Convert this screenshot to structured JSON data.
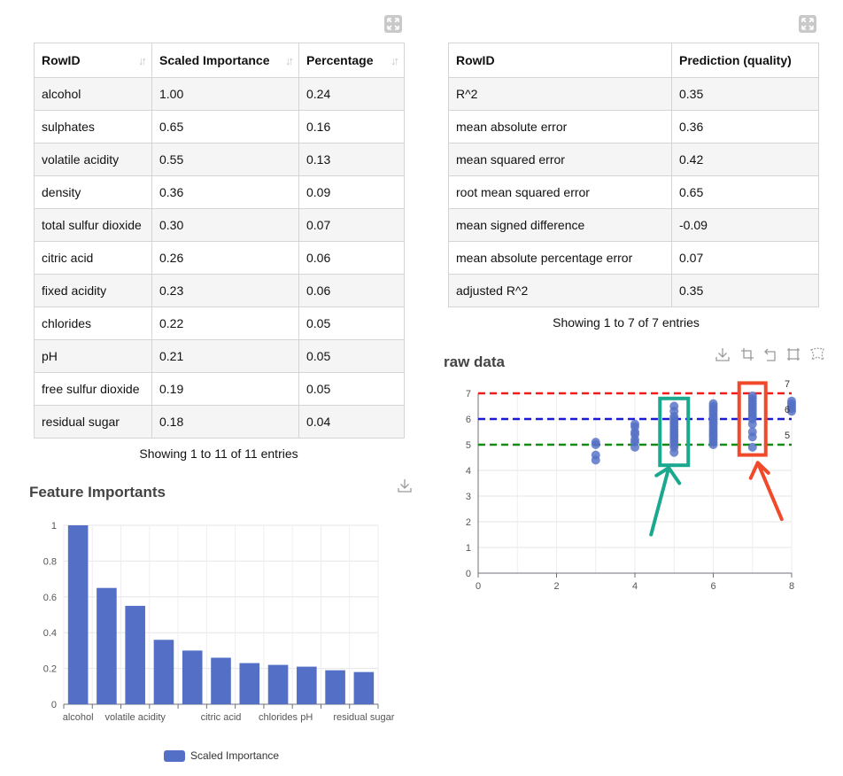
{
  "left_table": {
    "columns": [
      "RowID",
      "Scaled Importance",
      "Percentage"
    ],
    "rows": [
      [
        "alcohol",
        "1.00",
        "0.24"
      ],
      [
        "sulphates",
        "0.65",
        "0.16"
      ],
      [
        "volatile acidity",
        "0.55",
        "0.13"
      ],
      [
        "density",
        "0.36",
        "0.09"
      ],
      [
        "total sulfur dioxide",
        "0.30",
        "0.07"
      ],
      [
        "citric acid",
        "0.26",
        "0.06"
      ],
      [
        "fixed acidity",
        "0.23",
        "0.06"
      ],
      [
        "chlorides",
        "0.22",
        "0.05"
      ],
      [
        "pH",
        "0.21",
        "0.05"
      ],
      [
        "free sulfur dioxide",
        "0.19",
        "0.05"
      ],
      [
        "residual sugar",
        "0.18",
        "0.04"
      ]
    ],
    "info": "Showing 1 to 11 of 11 entries"
  },
  "right_table": {
    "columns": [
      "RowID",
      "Prediction (quality)"
    ],
    "rows": [
      [
        "R^2",
        "0.35"
      ],
      [
        "mean absolute error",
        "0.36"
      ],
      [
        "mean squared error",
        "0.42"
      ],
      [
        "root mean squared error",
        "0.65"
      ],
      [
        "mean signed difference",
        "-0.09"
      ],
      [
        "mean absolute percentage error",
        "0.07"
      ],
      [
        "adjusted R^2",
        "0.35"
      ]
    ],
    "info": "Showing 1 to 7 of 7 entries"
  },
  "icons": {
    "expand": "expand-icon",
    "download": "download-icon",
    "zoom": "data-zoom-icon",
    "zoom_reset": "zoom-reset-icon",
    "rect_select": "rect-select-icon",
    "lasso": "lasso-select-icon"
  },
  "colors": {
    "bar": "#5470c6",
    "scatter": "#5470c6",
    "line_7": "#ee1c1c",
    "line_6": "#1a1ad4",
    "line_5": "#138a13",
    "teal_annotation": "#1aa98f",
    "red_annotation": "#f04a2a"
  },
  "chart_data": [
    {
      "type": "bar",
      "title": "Feature Importants",
      "categories": [
        "alcohol",
        "sulphates",
        "volatile acidity",
        "density",
        "total sulfur dioxide",
        "citric acid",
        "fixed acidity",
        "chlorides",
        "pH",
        "free sulfur dioxide",
        "residual sugar"
      ],
      "visible_tick_labels": [
        "alcohol",
        "volatile acidity",
        "citric acid",
        "chlorides",
        "pH",
        "residual sugar"
      ],
      "series": [
        {
          "name": "Scaled Importance",
          "values": [
            1.0,
            0.65,
            0.55,
            0.36,
            0.3,
            0.26,
            0.23,
            0.22,
            0.21,
            0.19,
            0.18
          ]
        }
      ],
      "ylim": [
        0,
        1
      ],
      "yticks": [
        "0",
        "0.2",
        "0.4",
        "0.6",
        "0.8",
        "1"
      ],
      "legend": "bottom-center",
      "grid": true
    },
    {
      "type": "scatter",
      "title": "raw data",
      "xlim": [
        0,
        8
      ],
      "ylim": [
        0,
        7
      ],
      "xticks": [
        "0",
        "2",
        "4",
        "6",
        "8"
      ],
      "yticks": [
        "0",
        "1",
        "2",
        "3",
        "4",
        "5",
        "6",
        "7"
      ],
      "points": [
        [
          3,
          4.4
        ],
        [
          3,
          4.6
        ],
        [
          3,
          5.0
        ],
        [
          3,
          5.1
        ],
        [
          4,
          4.9
        ],
        [
          4,
          5.1
        ],
        [
          4,
          5.2
        ],
        [
          4,
          5.4
        ],
        [
          4,
          5.5
        ],
        [
          4,
          5.7
        ],
        [
          4,
          5.8
        ],
        [
          5,
          4.7
        ],
        [
          5,
          4.9
        ],
        [
          5,
          5.0
        ],
        [
          5,
          5.1
        ],
        [
          5,
          5.2
        ],
        [
          5,
          5.3
        ],
        [
          5,
          5.4
        ],
        [
          5,
          5.5
        ],
        [
          5,
          5.6
        ],
        [
          5,
          5.7
        ],
        [
          5,
          5.8
        ],
        [
          5,
          5.9
        ],
        [
          5,
          6.0
        ],
        [
          5,
          6.1
        ],
        [
          5,
          6.3
        ],
        [
          5,
          6.5
        ],
        [
          6,
          5.0
        ],
        [
          6,
          5.1
        ],
        [
          6,
          5.2
        ],
        [
          6,
          5.3
        ],
        [
          6,
          5.4
        ],
        [
          6,
          5.5
        ],
        [
          6,
          5.6
        ],
        [
          6,
          5.7
        ],
        [
          6,
          5.8
        ],
        [
          6,
          5.9
        ],
        [
          6,
          6.0
        ],
        [
          6,
          6.1
        ],
        [
          6,
          6.2
        ],
        [
          6,
          6.3
        ],
        [
          6,
          6.4
        ],
        [
          6,
          6.5
        ],
        [
          6,
          6.6
        ],
        [
          7,
          4.9
        ],
        [
          7,
          5.3
        ],
        [
          7,
          5.5
        ],
        [
          7,
          5.8
        ],
        [
          7,
          6.0
        ],
        [
          7,
          6.1
        ],
        [
          7,
          6.2
        ],
        [
          7,
          6.3
        ],
        [
          7,
          6.4
        ],
        [
          7,
          6.5
        ],
        [
          7,
          6.6
        ],
        [
          7,
          6.7
        ],
        [
          7,
          6.8
        ],
        [
          7,
          6.9
        ],
        [
          8,
          6.3
        ],
        [
          8,
          6.4
        ],
        [
          8,
          6.5
        ],
        [
          8,
          6.6
        ],
        [
          8,
          6.7
        ]
      ],
      "reference_lines": [
        {
          "label": "7",
          "y": 7
        },
        {
          "label": "6",
          "y": 6
        },
        {
          "label": "5",
          "y": 5
        }
      ],
      "annotations": [
        {
          "shape": "box-with-arrow",
          "color": "teal",
          "x": 5
        },
        {
          "shape": "box-with-arrow",
          "color": "red",
          "x": 7
        }
      ],
      "grid": true
    }
  ]
}
